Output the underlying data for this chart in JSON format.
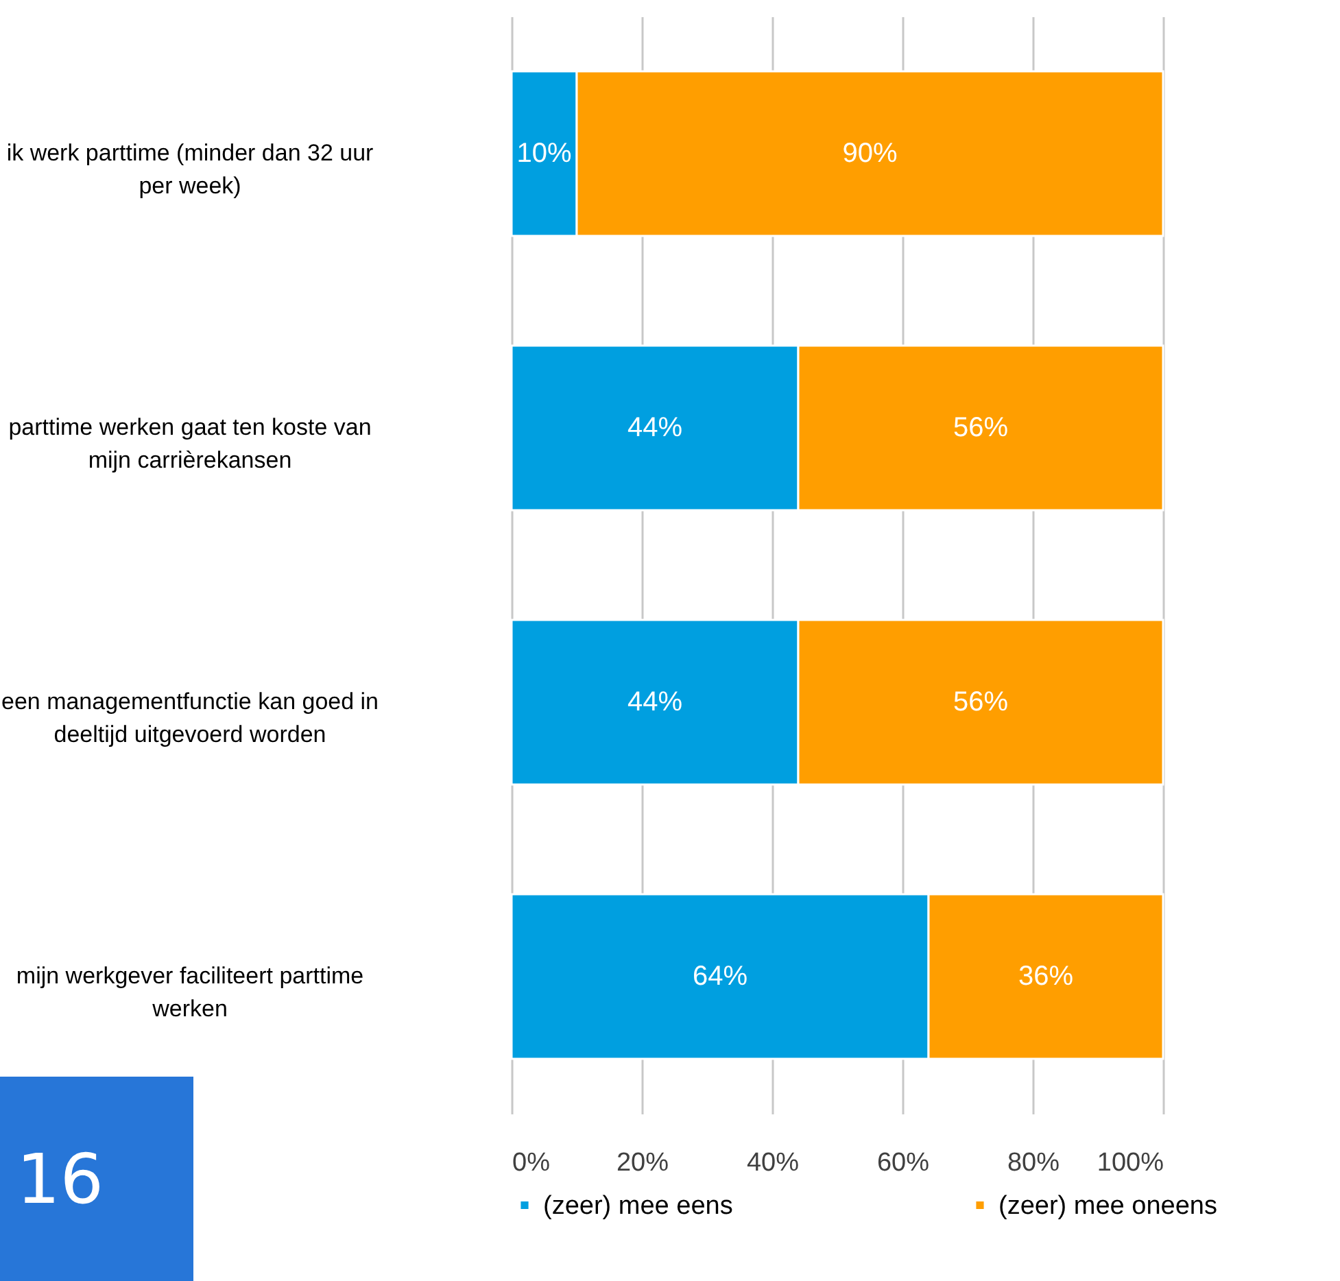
{
  "chart_data": {
    "type": "bar",
    "orientation": "horizontal",
    "stacked": true,
    "categories": [
      "ik werk parttime (minder dan 32 uur per week)",
      "parttime werken gaat ten koste van mijn carrièrekansen",
      "een managementfunctie kan goed in deeltijd uitgevoerd worden",
      "mijn werkgever faciliteert parttime werken"
    ],
    "series": [
      {
        "name": "(zeer) mee eens",
        "color": "#009fe0",
        "values": [
          10,
          44,
          44,
          64
        ]
      },
      {
        "name": "(zeer) mee oneens",
        "color": "#ff9e00",
        "values": [
          90,
          56,
          56,
          36
        ]
      }
    ],
    "xlim": [
      0,
      100
    ],
    "xticks": [
      {
        "value": 0,
        "label": "0%"
      },
      {
        "value": 20,
        "label": "20%"
      },
      {
        "value": 40,
        "label": "40%"
      },
      {
        "value": 60,
        "label": "60%"
      },
      {
        "value": 80,
        "label": "80%"
      },
      {
        "value": 100,
        "label": "100%"
      }
    ],
    "value_labels": [
      [
        "10%",
        "44%",
        "44%",
        "64%"
      ],
      [
        "90%",
        "56%",
        "56%",
        "36%"
      ]
    ],
    "grid": "x",
    "legend": "bottom",
    "annotations": [
      "16"
    ]
  }
}
